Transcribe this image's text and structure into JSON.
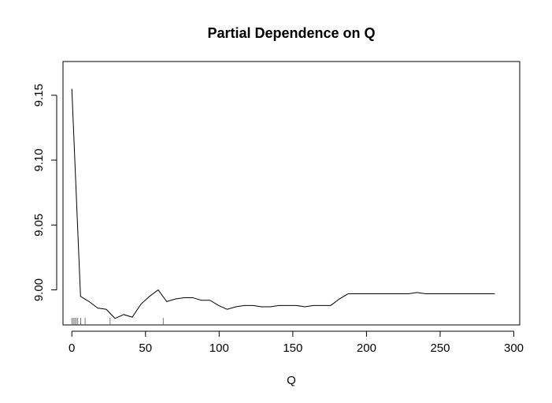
{
  "chart_data": {
    "type": "line",
    "title": "Partial Dependence on Q",
    "xlabel": "Q",
    "ylabel": "",
    "xlim": [
      -6,
      304
    ],
    "ylim": [
      8.973,
      9.176
    ],
    "x_ticks": [
      0,
      50,
      100,
      150,
      200,
      250,
      300
    ],
    "x_tick_labels": [
      "0",
      "50",
      "100",
      "150",
      "200",
      "250",
      "300"
    ],
    "y_ticks": [
      9.0,
      9.05,
      9.1,
      9.15
    ],
    "y_tick_labels": [
      "9.00",
      "9.05",
      "9.10",
      "9.15"
    ],
    "grid": false,
    "legend": "none",
    "line_color": "#000000",
    "series": [
      {
        "x": [
          0,
          5.9,
          11.7,
          17.6,
          23.4,
          29.3,
          35.2,
          41,
          46.9,
          52.7,
          58.6,
          64.4,
          70.3,
          76.2,
          82,
          87.9,
          93.7,
          99.6,
          105.4,
          111.3,
          117.2,
          123,
          128.9,
          134.7,
          140.6,
          146.5,
          152.3,
          158.2,
          164,
          169.9,
          175.7,
          181.6,
          187.5,
          193.3,
          199.2,
          205,
          210.9,
          216.8,
          222.6,
          228.5,
          234.3,
          240.2,
          246.1,
          251.9,
          257.8,
          263.6,
          269.5,
          275.3,
          281.2,
          287.1
        ],
        "y": [
          9.155,
          8.995,
          8.991,
          8.986,
          8.985,
          8.978,
          8.981,
          8.979,
          8.989,
          8.995,
          9.0,
          8.991,
          8.993,
          8.994,
          8.994,
          8.992,
          8.992,
          8.988,
          8.985,
          8.987,
          8.988,
          8.988,
          8.987,
          8.987,
          8.988,
          8.988,
          8.988,
          8.987,
          8.988,
          8.988,
          8.988,
          8.993,
          8.997,
          8.997,
          8.997,
          8.997,
          8.997,
          8.997,
          8.997,
          8.997,
          8.998,
          8.997,
          8.997,
          8.997,
          8.997,
          8.997,
          8.997,
          8.997,
          8.997,
          8.997
        ]
      }
    ],
    "rug_x": [
      0,
      1,
      2,
      3,
      4,
      6,
      9,
      26,
      62
    ]
  }
}
